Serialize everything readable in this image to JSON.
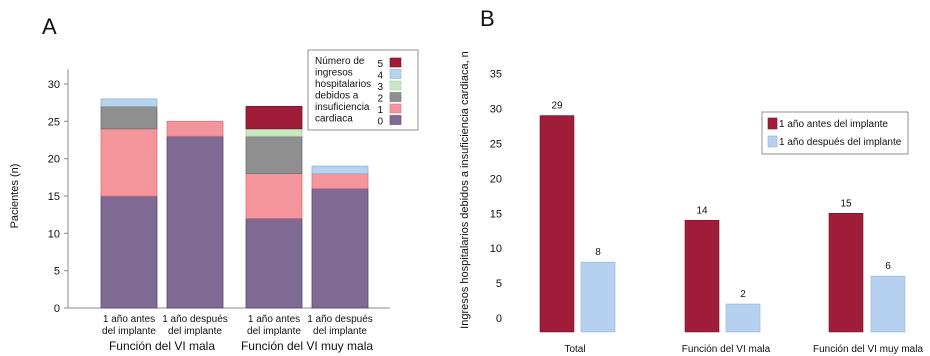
{
  "panels": {
    "a_letter": "A",
    "b_letter": "B"
  },
  "colors": {
    "c0": "#7e6a93",
    "c1": "#f4949b",
    "c2": "#8f8f8f",
    "c3": "#c8e8c4",
    "c4": "#b8d3ee",
    "c5": "#a01d3a",
    "before": "#a01d3a",
    "after": "#b5d1ef"
  },
  "chart_data": [
    {
      "type": "bar",
      "stacked": true,
      "ylabel": "Pacientes (n)",
      "ylim": [
        0,
        32
      ],
      "yticks": [
        0,
        5,
        10,
        15,
        20,
        25,
        30
      ],
      "categories": [
        [
          "1 año antes",
          "del implante"
        ],
        [
          "1 año después",
          "del implante"
        ],
        [
          "1 año antes",
          "del implante"
        ],
        [
          "1 año después",
          "del implante"
        ]
      ],
      "groups": [
        "Función del VI mala",
        "Función del VI muy mala"
      ],
      "legend_title": [
        "Número de",
        "ingresos",
        "hospitalarios",
        "debidos a",
        "insuficiencia",
        "cardiaca"
      ],
      "series": [
        {
          "name": "0",
          "values": [
            15,
            23,
            12,
            16
          ]
        },
        {
          "name": "1",
          "values": [
            9,
            2,
            6,
            2
          ]
        },
        {
          "name": "2",
          "values": [
            3,
            0,
            5,
            0
          ]
        },
        {
          "name": "3",
          "values": [
            0,
            0,
            1,
            0
          ]
        },
        {
          "name": "4",
          "values": [
            1,
            0,
            0,
            1
          ]
        },
        {
          "name": "5",
          "values": [
            0,
            0,
            3,
            0
          ]
        }
      ]
    },
    {
      "type": "bar",
      "ylabel": "Ingresos hospitalarios debidos a insuficiencia cardiaca, n",
      "ylim": [
        -2,
        37
      ],
      "yticks": [
        0,
        5,
        10,
        15,
        20,
        25,
        30,
        35
      ],
      "categories": [
        "Total",
        "Función del VI mala",
        "Función del VI muy mala"
      ],
      "series": [
        {
          "name": "1 año antes del implante",
          "values": [
            29,
            14,
            15
          ],
          "labels": [
            "29",
            "14",
            "15"
          ]
        },
        {
          "name": "1 año después del implante",
          "values": [
            8,
            2,
            6
          ],
          "labels": [
            "8",
            "2",
            "6"
          ]
        }
      ]
    }
  ]
}
